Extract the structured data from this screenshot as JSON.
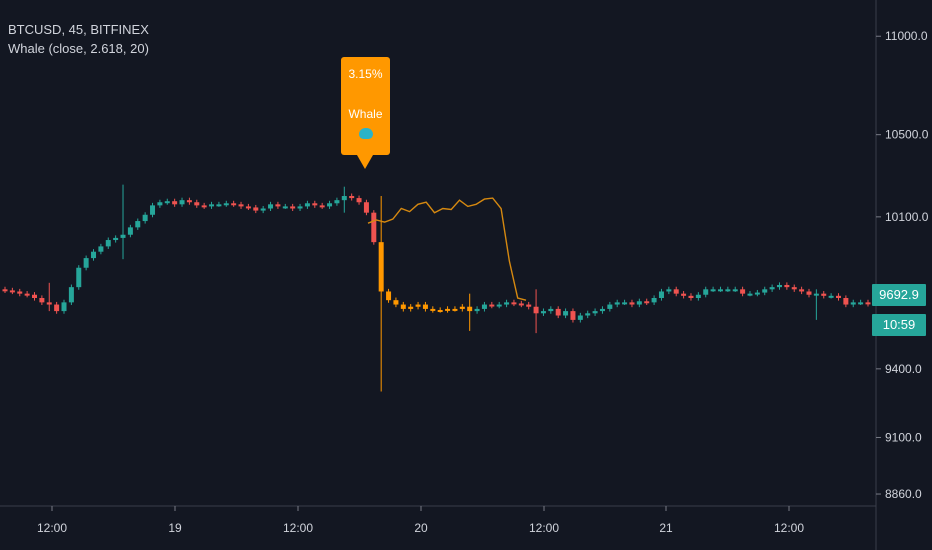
{
  "legend": {
    "symbol": "BTCUSD, 45, BITFINEX",
    "indicator": "Whale (close, 2.618, 20)"
  },
  "callout": {
    "percent": "3.15%",
    "label": "Whale",
    "icon": "whale-icon",
    "color": "#ff9800"
  },
  "price_tags": {
    "last_price": "9692.9",
    "countdown": "10:59",
    "color": "#26a69a"
  },
  "colors": {
    "background": "#131722",
    "up": "#26a69a",
    "down": "#ef5350",
    "whale": "#ff9800",
    "indicator_line": "#d68910",
    "text": "#d1d4dc"
  },
  "chart_data": {
    "type": "candlestick",
    "title": "BTCUSD, 45, BITFINEX",
    "y_ticks": [
      11000.0,
      10500.0,
      10100.0,
      9400.0,
      9100.0,
      8860.0
    ],
    "y_tick_labels": [
      "11000.0",
      "10500.0",
      "10100.0",
      "9400.0",
      "9100.0",
      "8860.0"
    ],
    "y_scale": "log",
    "ylim": [
      8810,
      11190
    ],
    "x_tick_labels": [
      "12:00",
      "19",
      "12:00",
      "20",
      "12:00",
      "21",
      "12:00"
    ],
    "grid": false,
    "series": [
      {
        "name": "BTCUSD",
        "ohlc_close": [
          9755,
          9750,
          9740,
          9735,
          9720,
          9700,
          9690,
          9660,
          9700,
          9770,
          9860,
          9905,
          9935,
          9960,
          9990,
          10000,
          10015,
          10050,
          10080,
          10110,
          10155,
          10170,
          10175,
          10160,
          10180,
          10170,
          10155,
          10150,
          10160,
          10160,
          10165,
          10160,
          10150,
          10145,
          10130,
          10140,
          10160,
          10150,
          10150,
          10140,
          10150,
          10165,
          10155,
          10150,
          10165,
          10180,
          10200,
          10190,
          10170,
          10120,
          9980,
          9750,
          9710,
          9690,
          9670,
          9680,
          9690,
          9670,
          9665,
          9665,
          9670,
          9670,
          9680,
          9660,
          9670,
          9690,
          9685,
          9690,
          9700,
          9695,
          9690,
          9680,
          9650,
          9660,
          9670,
          9640,
          9660,
          9620,
          9640,
          9650,
          9660,
          9670,
          9690,
          9700,
          9700,
          9690,
          9705,
          9700,
          9720,
          9750,
          9760,
          9740,
          9730,
          9720,
          9735,
          9760,
          9760,
          9760,
          9760,
          9760,
          9740,
          9740,
          9745,
          9760,
          9770,
          9780,
          9770,
          9760,
          9750,
          9735,
          9740,
          9730,
          9730,
          9720,
          9690,
          9700,
          9700,
          9693
        ],
        "whale_start_index": 51,
        "whale_end_index": 63
      },
      {
        "name": "",
        "line_y": [
          10070,
          10085,
          10075,
          10090,
          10140,
          10125,
          10160,
          10170,
          10120,
          10140,
          10135,
          10180,
          10150,
          10160,
          10185,
          10190,
          10140,
          9890,
          9720,
          9710
        ]
      }
    ]
  }
}
